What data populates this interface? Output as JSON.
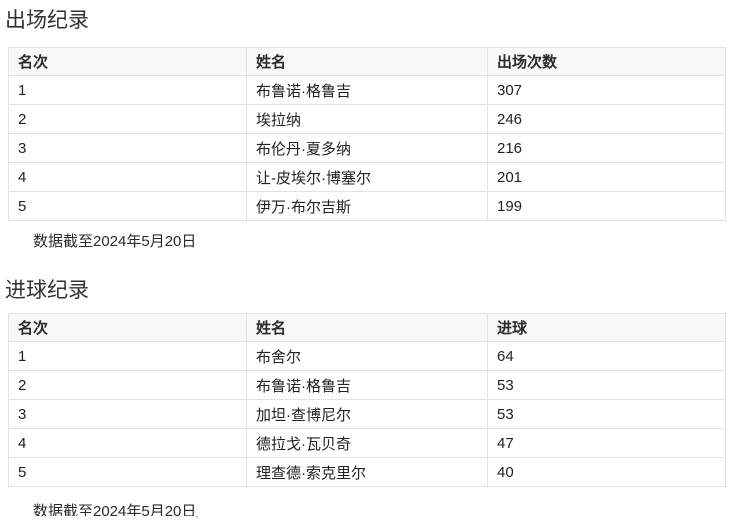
{
  "colors": {
    "header_bg": "#f8f8f8",
    "border": "#e2e2e2",
    "text": "#222222"
  },
  "sections": [
    {
      "title": "出场纪录",
      "table": {
        "type": "table",
        "headers": [
          "名次",
          "姓名",
          "出场次数"
        ],
        "rows": [
          [
            "1",
            "布鲁诺·格鲁吉",
            "307"
          ],
          [
            "2",
            "埃拉纳",
            "246"
          ],
          [
            "3",
            "布伦丹·夏多纳",
            "216"
          ],
          [
            "4",
            "让-皮埃尔·博塞尔",
            "201"
          ],
          [
            "5",
            "伊万·布尔吉斯",
            "199"
          ]
        ]
      },
      "footnote": "数据截至2024年5月20日"
    },
    {
      "title": "进球纪录",
      "table": {
        "type": "table",
        "headers": [
          "名次",
          "姓名",
          "进球"
        ],
        "rows": [
          [
            "1",
            "布舍尔",
            "64"
          ],
          [
            "2",
            "布鲁诺·格鲁吉",
            "53"
          ],
          [
            "3",
            "加坦·查博尼尔",
            "53"
          ],
          [
            "4",
            "德拉戈·瓦贝奇",
            "47"
          ],
          [
            "5",
            "理查德·索克里尔",
            "40"
          ]
        ]
      },
      "footnote": "数据截至2024年5月20日"
    }
  ]
}
